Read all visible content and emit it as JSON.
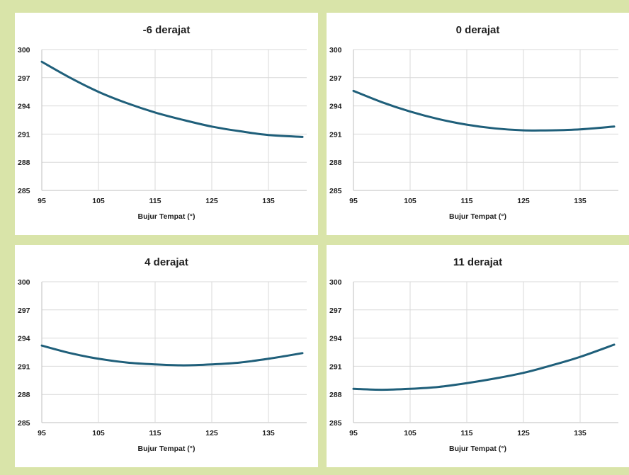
{
  "colors": {
    "background": "#d9e4a9",
    "panel": "#ffffff",
    "series": "#1f5f7a",
    "grid": "#d9d9d9"
  },
  "chart_data": [
    {
      "type": "line",
      "title": "-6 derajat",
      "xlabel": "Bujur Tempat (°)",
      "ylabel": "",
      "xlim": [
        95,
        141
      ],
      "ylim": [
        285,
        300
      ],
      "xticks": [
        95,
        105,
        115,
        125,
        135
      ],
      "yticks": [
        285,
        288,
        291,
        294,
        297,
        300
      ],
      "grid": true,
      "legend": "none",
      "series": [
        {
          "x": [
            95,
            100,
            105,
            110,
            115,
            120,
            125,
            130,
            135,
            141
          ],
          "y": [
            298.7,
            297.0,
            295.5,
            294.3,
            293.3,
            292.5,
            291.8,
            291.3,
            290.9,
            290.7
          ]
        }
      ]
    },
    {
      "type": "line",
      "title": "0 derajat",
      "xlabel": "Bujur Tempat (°)",
      "ylabel": "",
      "xlim": [
        95,
        141
      ],
      "ylim": [
        285,
        300
      ],
      "xticks": [
        95,
        105,
        115,
        125,
        135
      ],
      "yticks": [
        285,
        288,
        291,
        294,
        297,
        300
      ],
      "grid": true,
      "legend": "none",
      "series": [
        {
          "x": [
            95,
            100,
            105,
            110,
            115,
            120,
            125,
            130,
            135,
            141
          ],
          "y": [
            295.6,
            294.4,
            293.4,
            292.6,
            292.0,
            291.6,
            291.4,
            291.4,
            291.5,
            291.8
          ]
        }
      ]
    },
    {
      "type": "line",
      "title": "4 derajat",
      "xlabel": "Bujur Tempat (°)",
      "ylabel": "",
      "xlim": [
        95,
        141
      ],
      "ylim": [
        285,
        300
      ],
      "xticks": [
        95,
        105,
        115,
        125,
        135
      ],
      "yticks": [
        285,
        288,
        291,
        294,
        297,
        300
      ],
      "grid": true,
      "legend": "none",
      "series": [
        {
          "x": [
            95,
            100,
            105,
            110,
            115,
            120,
            125,
            130,
            135,
            141
          ],
          "y": [
            293.2,
            292.4,
            291.8,
            291.4,
            291.2,
            291.1,
            291.2,
            291.4,
            291.8,
            292.4
          ]
        }
      ]
    },
    {
      "type": "line",
      "title": "11 derajat",
      "xlabel": "Bujur Tempat (°)",
      "ylabel": "",
      "xlim": [
        95,
        141
      ],
      "ylim": [
        285,
        300
      ],
      "xticks": [
        95,
        105,
        115,
        125,
        135
      ],
      "yticks": [
        285,
        288,
        291,
        294,
        297,
        300
      ],
      "grid": true,
      "legend": "none",
      "series": [
        {
          "x": [
            95,
            100,
            105,
            110,
            115,
            120,
            125,
            130,
            135,
            141
          ],
          "y": [
            288.6,
            288.5,
            288.6,
            288.8,
            289.2,
            289.7,
            290.3,
            291.1,
            292.0,
            293.3
          ]
        }
      ]
    }
  ]
}
